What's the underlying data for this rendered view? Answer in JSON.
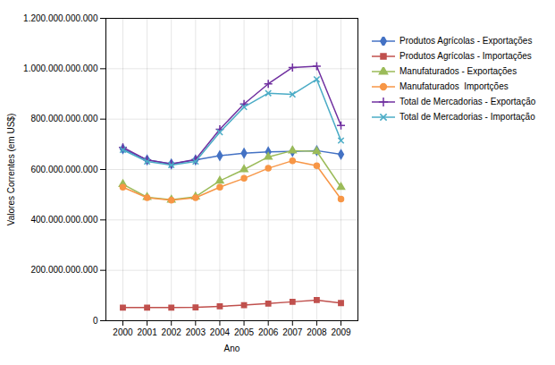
{
  "chart_data": {
    "type": "line",
    "x": [
      2000,
      2001,
      2002,
      2003,
      2004,
      2005,
      2006,
      2007,
      2008,
      2009
    ],
    "series": [
      {
        "name": "Produtos Agrícolas - Exportações",
        "color": "#4472C4",
        "marker": "diamond",
        "values": [
          682000000000,
          638000000000,
          622000000000,
          638000000000,
          655000000000,
          665000000000,
          670000000000,
          672000000000,
          675000000000,
          660000000000
        ]
      },
      {
        "name": "Produtos Agrícolas - Importações",
        "color": "#C0504D",
        "marker": "square",
        "values": [
          52000000000,
          52000000000,
          52000000000,
          53000000000,
          57000000000,
          62000000000,
          68000000000,
          75000000000,
          82000000000,
          70000000000
        ]
      },
      {
        "name": "Manufaturados - Exportações",
        "color": "#9BBB59",
        "marker": "triangle",
        "values": [
          542000000000,
          490000000000,
          480000000000,
          492000000000,
          555000000000,
          600000000000,
          650000000000,
          675000000000,
          672000000000,
          530000000000
        ]
      },
      {
        "name": "Manufaturados  Importções",
        "color": "#F79646",
        "marker": "circle",
        "values": [
          530000000000,
          488000000000,
          478000000000,
          488000000000,
          530000000000,
          565000000000,
          605000000000,
          635000000000,
          615000000000,
          483000000000
        ]
      },
      {
        "name": "Total de Mercadorias - Exportação",
        "color": "#7030A0",
        "marker": "plus",
        "values": [
          688000000000,
          638000000000,
          622000000000,
          640000000000,
          760000000000,
          860000000000,
          940000000000,
          1005000000000,
          1010000000000,
          775000000000
        ]
      },
      {
        "name": "Total de Mercadorias - Importação",
        "color": "#4BACC6",
        "marker": "times",
        "values": [
          678000000000,
          632000000000,
          618000000000,
          632000000000,
          748000000000,
          848000000000,
          903000000000,
          898000000000,
          958000000000,
          715000000000
        ]
      }
    ],
    "xlabel": "Ano",
    "ylabel": "Valores Correntes (em US$)",
    "xlim": [
      1999.3,
      2009.7
    ],
    "xticks": [
      2000,
      2001,
      2002,
      2003,
      2004,
      2005,
      2006,
      2007,
      2008,
      2009
    ],
    "ylim": [
      0,
      1200000000000
    ],
    "yticks": [
      0,
      {
        "value": 200000000000,
        "label": "200.000.000.000"
      },
      {
        "value": 400000000000,
        "label": "400.000.000.000"
      },
      {
        "value": 600000000000,
        "label": "600.000.000.000"
      },
      {
        "value": 800000000000,
        "label": "800.000.000.000"
      },
      {
        "value": 1000000000000,
        "label": "1.000.000.000.000"
      },
      {
        "value": 1200000000000,
        "label": "1.200.000.000.000"
      }
    ],
    "grid": true,
    "legend": "right"
  }
}
